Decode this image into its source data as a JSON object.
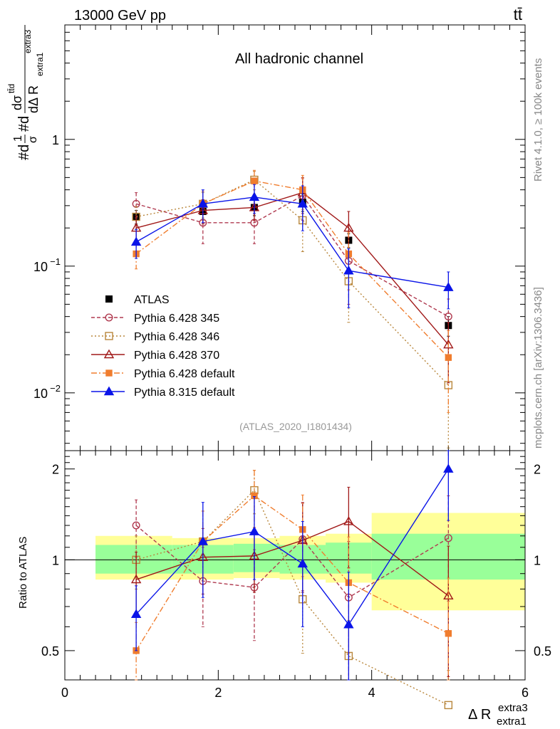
{
  "header": {
    "energy": "13000 GeV pp",
    "process": "tt̄"
  },
  "side": {
    "rivet": "Rivet 4.1.0, ≥ 100k events",
    "mcplots": "mcplots.cern.ch [arXiv:1306.3436]"
  },
  "main": {
    "channel": "All hadronic channel",
    "analysis": "(ATLAS_2020_I1801434)"
  },
  "ylabel_main": {
    "numer": "#d",
    "frac1_num": "1",
    "frac1_den": "σ",
    "mid": "#d",
    "frac2_num": "dσ",
    "frac2_num_sup": "tt̄d",
    "frac2_den": "dΔ R",
    "frac2_den_sub": "extra1",
    "frac2_den_sup": "extra3"
  },
  "ylabel_ratio": "Ratio to ATLAS",
  "xlabel": {
    "main": "Δ R",
    "sup": "extra3",
    "sub": "extra1"
  },
  "yticks_main": [
    {
      "base": "10",
      "exp": "−2",
      "v": 0.01
    },
    {
      "base": "10",
      "exp": "−1",
      "v": 0.1
    },
    {
      "base": "1",
      "exp": "",
      "v": 1
    }
  ],
  "colors": {
    "atlas": "#000000",
    "p345": "#b03a50",
    "p346": "#b8863b",
    "p370": "#a01818",
    "pdef": "#f07d2e",
    "p8": "#0a14e8",
    "band_inner": "#99ff99",
    "band_outer": "#ffff99"
  },
  "chart_data": [
    {
      "type": "line",
      "panel": "main",
      "yscale": "log",
      "xlim": [
        0,
        6
      ],
      "ylim": [
        0.0035,
        8
      ],
      "bin_edges": [
        0.4,
        1.4,
        2.2,
        2.8,
        3.4,
        4.0,
        6.0
      ],
      "x": [
        0.93,
        1.8,
        2.47,
        3.1,
        3.7,
        5.0
      ],
      "series": [
        {
          "key": "atlas",
          "name": "ATLAS",
          "values": [
            0.245,
            0.27,
            0.29,
            0.32,
            0.16,
            0.034
          ],
          "errors": [
            0.03,
            0.04,
            0.04,
            0.05,
            0.02,
            0.006
          ]
        },
        {
          "key": "p345",
          "name": "Pythia 6.428 345",
          "values": [
            0.31,
            0.22,
            0.22,
            0.36,
            0.11,
            0.04
          ],
          "errors": [
            0.07,
            0.07,
            0.07,
            0.13,
            0.06,
            0.015
          ]
        },
        {
          "key": "p346",
          "name": "Pythia 6.428 346",
          "values": [
            0.245,
            0.31,
            0.48,
            0.23,
            0.076,
            0.0115
          ],
          "errors": [
            0.05,
            0.07,
            0.08,
            0.1,
            0.04,
            0.008
          ]
        },
        {
          "key": "p370",
          "name": "Pythia 6.428 370",
          "values": [
            0.2,
            0.275,
            0.29,
            0.38,
            0.2,
            0.024
          ],
          "errors": [
            0.05,
            0.06,
            0.06,
            0.12,
            0.07,
            0.012
          ]
        },
        {
          "key": "pdef",
          "name": "Pythia 6.428 default",
          "values": [
            0.125,
            0.31,
            0.47,
            0.4,
            0.125,
            0.019
          ],
          "errors": [
            0.03,
            0.08,
            0.1,
            0.12,
            0.06,
            0.012
          ]
        },
        {
          "key": "p8",
          "name": "Pythia 8.315 default",
          "values": [
            0.155,
            0.31,
            0.35,
            0.31,
            0.092,
            0.068
          ],
          "errors": [
            0.04,
            0.09,
            0.09,
            0.12,
            0.045,
            0.022
          ]
        }
      ]
    },
    {
      "type": "line",
      "panel": "ratio",
      "yscale": "log",
      "xlim": [
        0,
        6
      ],
      "ylim": [
        0.4,
        2.3
      ],
      "ylabel": "Ratio to ATLAS",
      "yticks": [
        0.5,
        1,
        2
      ],
      "x": [
        0.93,
        1.8,
        2.47,
        3.1,
        3.7,
        5.0
      ],
      "bands": {
        "edges": [
          0.4,
          1.4,
          2.2,
          2.8,
          3.4,
          4.0,
          6.0
        ],
        "inner": [
          [
            0.9,
            1.12
          ],
          [
            0.9,
            1.12
          ],
          [
            0.91,
            1.13
          ],
          [
            0.9,
            1.12
          ],
          [
            0.9,
            1.14
          ],
          [
            0.86,
            1.22
          ]
        ],
        "outer": [
          [
            0.86,
            1.2
          ],
          [
            0.86,
            1.18
          ],
          [
            0.87,
            1.18
          ],
          [
            0.86,
            1.2
          ],
          [
            0.84,
            1.22
          ],
          [
            0.68,
            1.43
          ]
        ]
      },
      "series": [
        {
          "key": "p345",
          "name": "Pythia 6.428 345",
          "values": [
            1.3,
            0.85,
            0.81,
            1.17,
            0.75,
            1.18
          ],
          "errors": [
            0.28,
            0.25,
            0.27,
            0.38,
            0.4,
            0.45
          ]
        },
        {
          "key": "p346",
          "name": "Pythia 6.428 346",
          "values": [
            1.0,
            1.15,
            1.7,
            0.74,
            0.48,
            0.33
          ],
          "errors": [
            0.2,
            0.3,
            0.28,
            0.25,
            0.15,
            0.1
          ]
        },
        {
          "key": "p370",
          "name": "Pythia 6.428 370",
          "values": [
            0.86,
            1.02,
            1.03,
            1.16,
            1.34,
            0.76
          ],
          "errors": [
            0.2,
            0.25,
            0.25,
            0.38,
            0.4,
            0.35
          ]
        },
        {
          "key": "pdef",
          "name": "Pythia 6.428 default",
          "values": [
            0.5,
            1.15,
            1.63,
            1.26,
            0.84,
            0.57
          ],
          "errors": [
            0.12,
            0.3,
            0.35,
            0.38,
            0.35,
            0.3
          ]
        },
        {
          "key": "p8",
          "name": "Pythia 8.315 default",
          "values": [
            0.66,
            1.15,
            1.24,
            0.97,
            0.61,
            2.0
          ],
          "errors": [
            0.16,
            0.4,
            0.38,
            0.37,
            0.3,
            0.65
          ]
        }
      ]
    }
  ]
}
